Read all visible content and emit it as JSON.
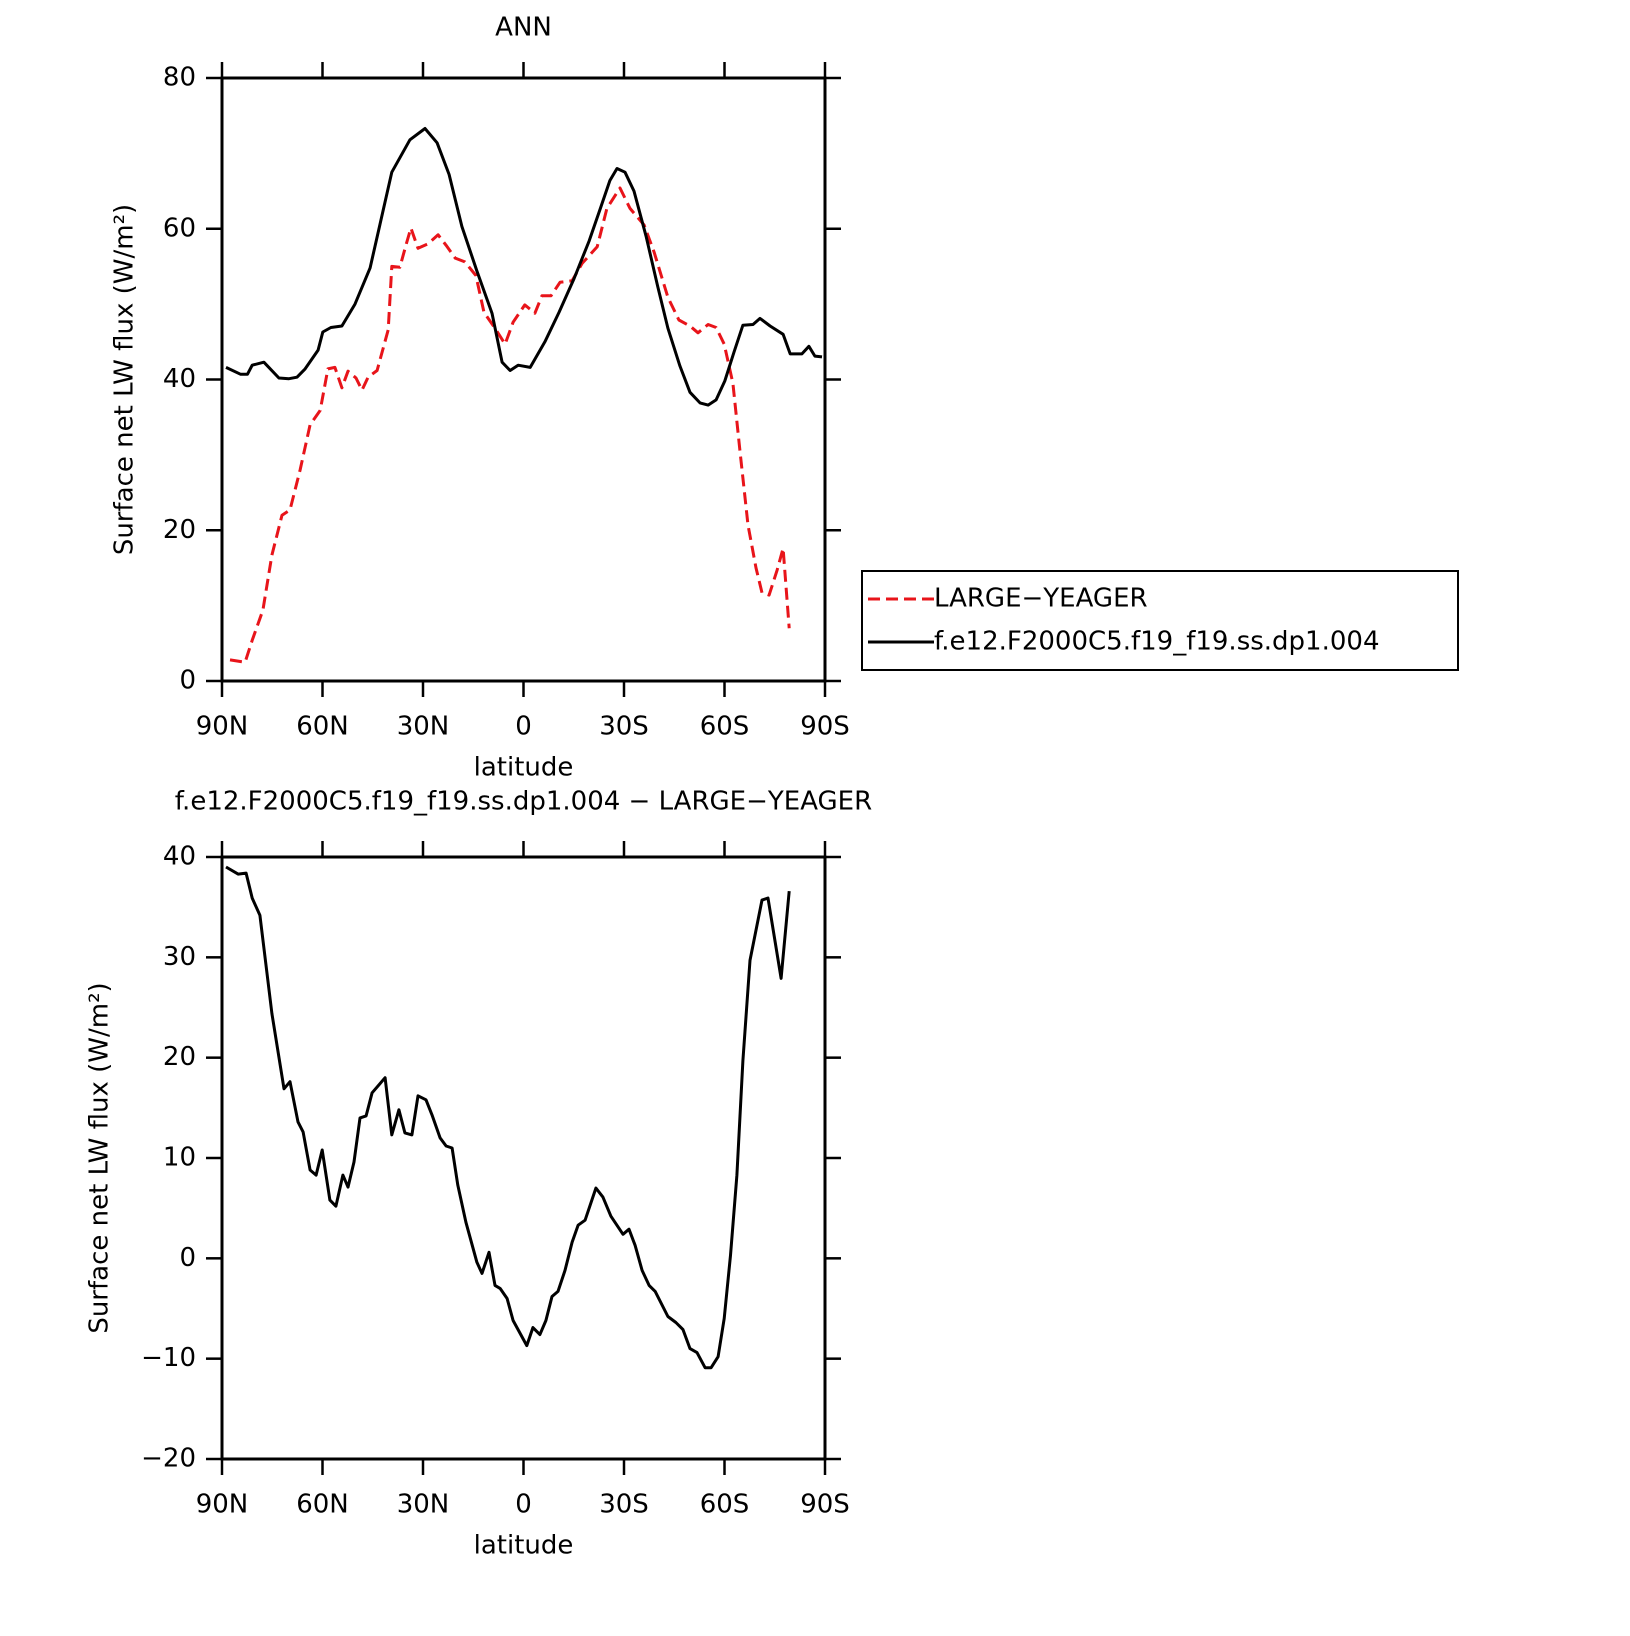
{
  "chart_data": [
    {
      "type": "line",
      "title": "ANN",
      "xlabel": "latitude",
      "ylabel": "Surface net LW flux (W/m²)",
      "xlim": [
        90,
        -90
      ],
      "xticks": [
        {
          "value": 90,
          "label": "90N"
        },
        {
          "value": 60,
          "label": "60N"
        },
        {
          "value": 30,
          "label": "30N"
        },
        0,
        {
          "value": -30,
          "label": "30S"
        },
        {
          "value": -60,
          "label": "60S"
        },
        {
          "value": -90,
          "label": "90S"
        }
      ],
      "ylim": [
        0,
        80
      ],
      "yticks": [
        0,
        20,
        40,
        60,
        80
      ],
      "legend": "right",
      "series": [
        {
          "name": "LARGE−YEAGER",
          "color": "#e8141a",
          "dash": true,
          "x": [
            87.6,
            83.1,
            81,
            77.8,
            75.1,
            72.1,
            69.7,
            66.7,
            63.7,
            60.7,
            58.4,
            56.3,
            54.2,
            52.4,
            50.0,
            48.2,
            46.4,
            43.7,
            40.4,
            39.3,
            36.9,
            35.1,
            33.6,
            31.5,
            28.5,
            25.5,
            23.1,
            20.4,
            17.5,
            14.2,
            11.8,
            8.5,
            5.5,
            3.1,
            -0.4,
            -3.4,
            -5.5,
            -8.2,
            -10.9,
            -14.5,
            -17.5,
            -22.0,
            -24.9,
            -28.8,
            -31.8,
            -36.0,
            -39.0,
            -43.1,
            -46.4,
            -49.7,
            -52.1,
            -55.1,
            -57.5,
            -59.9,
            -62.5,
            -64.6,
            -67.0,
            -69.4,
            -71.2,
            -73.3,
            -75.7,
            -77.5,
            -79.3
          ],
          "values": [
            2.8,
            2.5,
            5.4,
            9.4,
            16.7,
            22.0,
            22.7,
            28.0,
            34.0,
            35.9,
            41.4,
            41.6,
            38.9,
            41.1,
            40.2,
            38.6,
            40.3,
            41.2,
            46.6,
            55.0,
            54.9,
            57.8,
            60.1,
            57.4,
            58.0,
            59.2,
            57.8,
            56.1,
            55.6,
            53.8,
            48.9,
            46.8,
            44.7,
            47.6,
            49.9,
            48.8,
            51.1,
            51.1,
            52.9,
            53.1,
            55.4,
            57.6,
            62.7,
            65.4,
            62.7,
            60.5,
            56.9,
            50.9,
            47.9,
            47.1,
            46.2,
            47.3,
            46.9,
            44.7,
            39.5,
            30.6,
            20.7,
            15.0,
            11.7,
            11.4,
            14.7,
            17.6,
            7.0
          ]
        },
        {
          "name": "f.e12.F2000C5.f19_f19.ss.dp1.004",
          "color": "#000000",
          "dash": false,
          "x": [
            88.8,
            84.5,
            82.4,
            81,
            77.5,
            73,
            70,
            67.6,
            65.2,
            61.3,
            59.9,
            57.5,
            54.2,
            50.3,
            45.8,
            39.3,
            33.9,
            29.4,
            25.8,
            22.2,
            18.4,
            13.9,
            9.4,
            6.4,
            4.0,
            1.6,
            -2.0,
            -6.4,
            -10.6,
            -15.1,
            -19.6,
            -23.1,
            -25.8,
            -27.9,
            -30.3,
            -33.0,
            -36.6,
            -40.1,
            -43.1,
            -46.7,
            -49.7,
            -52.7,
            -55.1,
            -57.5,
            -60.1,
            -62.8,
            -65.5,
            -68.5,
            -70.6,
            -73.6,
            -77.5,
            -79.6,
            -83.1,
            -85.2,
            -87.0,
            -89.1
          ],
          "values": [
            41.6,
            40.7,
            40.7,
            41.9,
            42.3,
            40.2,
            40.1,
            40.3,
            41.4,
            43.9,
            46.3,
            46.9,
            47.1,
            50.0,
            54.8,
            67.5,
            71.8,
            73.3,
            71.4,
            67.2,
            60.3,
            54.4,
            48.8,
            42.3,
            41.2,
            41.9,
            41.6,
            45.0,
            48.9,
            53.4,
            58.4,
            62.9,
            66.4,
            68.0,
            67.5,
            65.0,
            59.0,
            52.3,
            46.8,
            41.8,
            38.3,
            36.9,
            36.6,
            37.3,
            39.8,
            43.6,
            47.2,
            47.3,
            48.1,
            47.1,
            46.0,
            43.4,
            43.4,
            44.4,
            43.1,
            43.0
          ]
        }
      ]
    },
    {
      "type": "line",
      "title": "f.e12.F2000C5.f19_f19.ss.dp1.004 − LARGE−YEAGER",
      "xlabel": "latitude",
      "ylabel": "Surface net LW flux (W/m²)",
      "xlim": [
        90,
        -90
      ],
      "xticks": [
        {
          "value": 90,
          "label": "90N"
        },
        {
          "value": 60,
          "label": "60N"
        },
        {
          "value": 30,
          "label": "30N"
        },
        0,
        {
          "value": -30,
          "label": "30S"
        },
        {
          "value": -60,
          "label": "60S"
        },
        {
          "value": -90,
          "label": "90S"
        }
      ],
      "ylim": [
        -20,
        40
      ],
      "yticks": [
        {
          "value": -20,
          "label": "−20"
        },
        {
          "value": -10,
          "label": "−10"
        },
        0,
        10,
        20,
        30,
        40
      ],
      "series": [
        {
          "color": "#000000",
          "dash": false,
          "x": [
            88.8,
            85.2,
            82.8,
            81,
            78.7,
            75.1,
            71.5,
            69.7,
            67.3,
            65.8,
            63.7,
            61.9,
            60.1,
            57.8,
            56.0,
            53.9,
            52.4,
            50.6,
            48.8,
            47.0,
            45.2,
            41.3,
            39.3,
            37.2,
            35.4,
            33.3,
            31.5,
            29.1,
            27.3,
            24.9,
            23.1,
            21.3,
            19.6,
            17.2,
            13.9,
            12.4,
            10.3,
            8.5,
            7.0,
            4.9,
            3.1,
            -1.0,
            -2.8,
            -4.9,
            -6.7,
            -8.5,
            -10.3,
            -12.4,
            -14.5,
            -16.3,
            -18.4,
            -21.6,
            -23.7,
            -26.1,
            -29.7,
            -31.5,
            -33.3,
            -35.4,
            -37.5,
            -39.3,
            -43.1,
            -45.5,
            -47.6,
            -49.7,
            -51.8,
            -54.2,
            -56.0,
            -58.1,
            -59.9,
            -61.8,
            -63.7,
            -65.5,
            -67.6,
            -71.2,
            -73.0,
            -76.9,
            -79.3
          ],
          "values": [
            39.0,
            38.3,
            38.4,
            35.9,
            34.2,
            24.4,
            16.9,
            17.6,
            13.6,
            12.6,
            8.8,
            8.3,
            10.8,
            5.8,
            5.2,
            8.3,
            7.1,
            9.6,
            14.0,
            14.2,
            16.5,
            18.0,
            12.3,
            14.8,
            12.5,
            12.3,
            16.2,
            15.8,
            14.3,
            12.0,
            11.2,
            11.0,
            7.3,
            3.6,
            -0.4,
            -1.5,
            0.6,
            -2.7,
            -3.0,
            -4.0,
            -6.2,
            -8.7,
            -6.9,
            -7.6,
            -6.2,
            -3.8,
            -3.3,
            -1.2,
            1.6,
            3.3,
            3.8,
            7.0,
            6.1,
            4.2,
            2.4,
            2.9,
            1.3,
            -1.2,
            -2.7,
            -3.3,
            -5.8,
            -6.4,
            -7.1,
            -9.0,
            -9.4,
            -10.9,
            -10.9,
            -9.8,
            -6.0,
            0.3,
            8.3,
            19.7,
            29.7,
            35.7,
            35.9,
            27.9,
            36.6
          ]
        }
      ]
    }
  ]
}
